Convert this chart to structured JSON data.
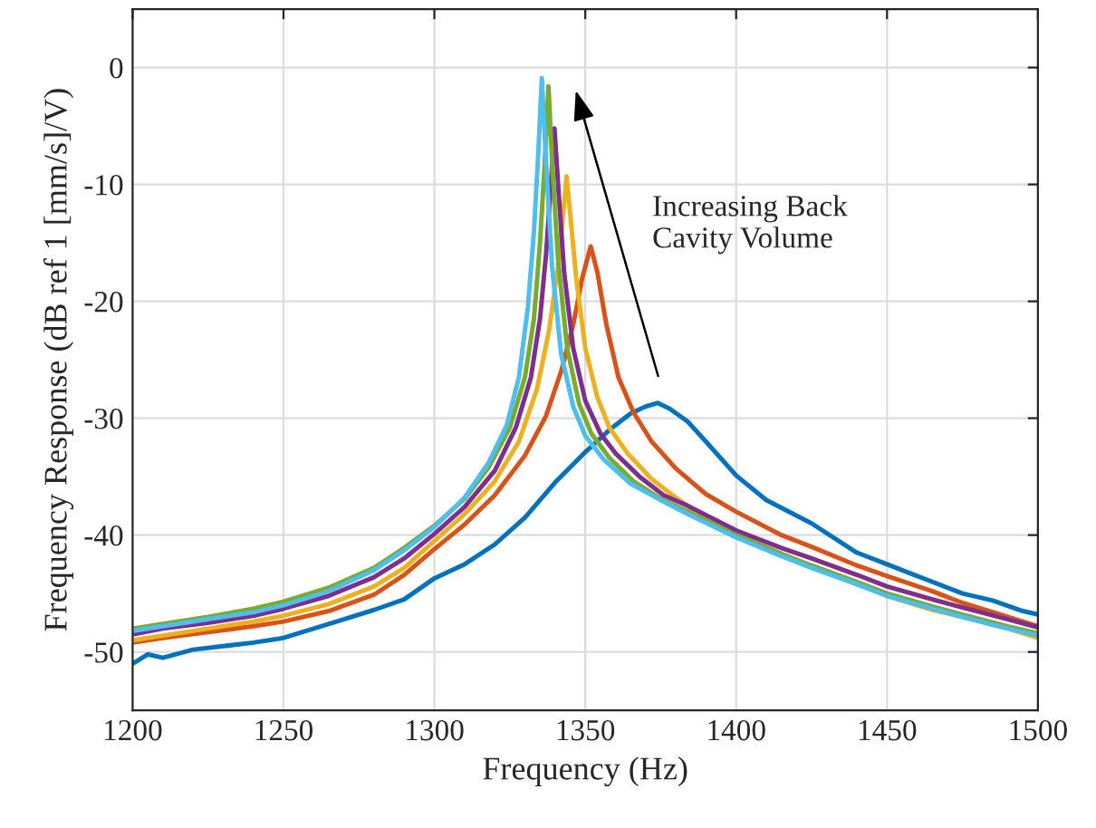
{
  "chart_data": {
    "type": "line",
    "xlabel": "Frequency (Hz)",
    "ylabel": "Frequency Response (dB ref 1 [mm/s]/V)",
    "xlim": [
      1200,
      1500
    ],
    "xticks": [
      1200,
      1250,
      1300,
      1350,
      1400,
      1450,
      1500
    ],
    "ylim": [
      -55,
      5
    ],
    "yticks": [
      -50,
      -40,
      -30,
      -20,
      -10,
      0
    ],
    "grid": true,
    "legend": false,
    "marker": "none",
    "line_style": "solid",
    "annotations": [
      "Increasing Back\nCavity Volume"
    ],
    "series": [
      {
        "color": "#0072bd",
        "x": [
          1200,
          1205,
          1210,
          1220,
          1230,
          1240,
          1250,
          1260,
          1270,
          1280,
          1290,
          1300,
          1310,
          1320,
          1330,
          1340,
          1350,
          1358,
          1365,
          1370,
          1374,
          1378,
          1384,
          1390,
          1400,
          1410,
          1425,
          1440,
          1450,
          1460,
          1475,
          1485,
          1495,
          1500
        ],
        "values": [
          -51,
          -50.2,
          -50.5,
          -49.8,
          -49.5,
          -49.2,
          -48.8,
          -48,
          -47.2,
          -46.4,
          -45.5,
          -43.7,
          -42.5,
          -40.8,
          -38.5,
          -35.5,
          -32.9,
          -31,
          -29.6,
          -29,
          -28.7,
          -29.2,
          -30.3,
          -32,
          -34.9,
          -37,
          -39,
          -41.5,
          -42.5,
          -43.5,
          -45,
          -45.6,
          -46.5,
          -46.8
        ]
      },
      {
        "color": "#d95319",
        "x": [
          1200,
          1210,
          1225,
          1240,
          1250,
          1265,
          1280,
          1290,
          1300,
          1310,
          1320,
          1330,
          1337,
          1342,
          1346,
          1349,
          1351.8,
          1354,
          1357,
          1361,
          1366,
          1372,
          1380,
          1390,
          1400,
          1415,
          1425,
          1440,
          1450,
          1465,
          1475,
          1490,
          1500
        ],
        "values": [
          -49.2,
          -48.8,
          -48.3,
          -47.8,
          -47.4,
          -46.5,
          -45.1,
          -43.4,
          -41.2,
          -39.1,
          -36.6,
          -33.2,
          -29.8,
          -26,
          -22,
          -18,
          -15.3,
          -17.5,
          -22,
          -26.5,
          -29.5,
          -32,
          -34.3,
          -36.5,
          -38,
          -40,
          -41,
          -42.6,
          -43.5,
          -44.8,
          -45.8,
          -47,
          -47.8
        ]
      },
      {
        "color": "#edb120",
        "x": [
          1200,
          1210,
          1225,
          1240,
          1250,
          1265,
          1280,
          1290,
          1300,
          1310,
          1320,
          1328,
          1334,
          1338,
          1341,
          1342.5,
          1343.8,
          1345,
          1347,
          1350,
          1354,
          1358,
          1364,
          1372,
          1380,
          1390,
          1400,
          1415,
          1425,
          1440,
          1450,
          1465,
          1475,
          1490,
          1500
        ],
        "values": [
          -49.0,
          -48.6,
          -48.0,
          -47.4,
          -46.9,
          -45.9,
          -44.4,
          -42.8,
          -40.5,
          -38.2,
          -35.4,
          -32.0,
          -27.5,
          -22.5,
          -17,
          -13,
          -9.3,
          -12.5,
          -18,
          -24,
          -28.2,
          -30.8,
          -33,
          -35.2,
          -36.8,
          -38.6,
          -39.9,
          -41.6,
          -42.7,
          -44.2,
          -45.2,
          -46.4,
          -47,
          -48,
          -48.8
        ]
      },
      {
        "color": "#7e2f8e",
        "x": [
          1200,
          1210,
          1225,
          1240,
          1250,
          1265,
          1280,
          1290,
          1300,
          1310,
          1320,
          1327,
          1332,
          1335,
          1337,
          1338.5,
          1339.8,
          1341,
          1343,
          1346,
          1350,
          1355,
          1360,
          1368,
          1376,
          1384,
          1400,
          1415,
          1425,
          1440,
          1450,
          1465,
          1475,
          1490,
          1500
        ],
        "values": [
          -48.5,
          -48.0,
          -47.5,
          -46.9,
          -46.3,
          -45.2,
          -43.6,
          -42.0,
          -39.9,
          -37.6,
          -34.5,
          -30.8,
          -26.5,
          -21.5,
          -16,
          -10.5,
          -5.2,
          -10,
          -17.5,
          -24,
          -28.5,
          -31.3,
          -33,
          -35,
          -36.6,
          -37.5,
          -39.6,
          -41.1,
          -42.0,
          -43.4,
          -44.4,
          -45.5,
          -46.2,
          -47.2,
          -47.9
        ]
      },
      {
        "color": "#77ac30",
        "x": [
          1200,
          1210,
          1225,
          1240,
          1250,
          1265,
          1280,
          1290,
          1300,
          1310,
          1318,
          1325,
          1330,
          1333,
          1335,
          1336.5,
          1337.8,
          1339,
          1341,
          1344,
          1348,
          1352,
          1358,
          1366,
          1375,
          1384,
          1400,
          1415,
          1425,
          1440,
          1450,
          1465,
          1475,
          1490,
          1500
        ],
        "values": [
          -48.0,
          -47.6,
          -47.0,
          -46.3,
          -45.7,
          -44.5,
          -42.8,
          -41.1,
          -39.2,
          -36.9,
          -34.2,
          -30.8,
          -26.5,
          -21.5,
          -15,
          -8.5,
          -1.6,
          -8,
          -16.5,
          -24,
          -28.8,
          -31.3,
          -33.4,
          -35.4,
          -36.9,
          -38,
          -40,
          -41.6,
          -42.6,
          -44,
          -45,
          -46.1,
          -46.8,
          -47.8,
          -48.4
        ]
      },
      {
        "color": "#4dbeee",
        "x": [
          1200,
          1210,
          1225,
          1240,
          1250,
          1265,
          1280,
          1290,
          1300,
          1310,
          1318,
          1324,
          1328,
          1331,
          1333,
          1334.5,
          1335.6,
          1337,
          1339,
          1342,
          1346,
          1350,
          1356,
          1365,
          1375,
          1384,
          1400,
          1415,
          1425,
          1440,
          1450,
          1465,
          1475,
          1490,
          1500
        ],
        "values": [
          -48.2,
          -47.8,
          -47.2,
          -46.6,
          -46.0,
          -44.8,
          -43.0,
          -41.3,
          -39.3,
          -36.8,
          -33.8,
          -30.6,
          -26.5,
          -20.5,
          -14.0,
          -7.0,
          -0.9,
          -8,
          -17,
          -24.5,
          -29,
          -31.5,
          -33.5,
          -35.6,
          -37,
          -38.2,
          -40.2,
          -41.8,
          -42.8,
          -44.2,
          -45.2,
          -46.3,
          -47,
          -48,
          -48.6
        ]
      }
    ]
  }
}
